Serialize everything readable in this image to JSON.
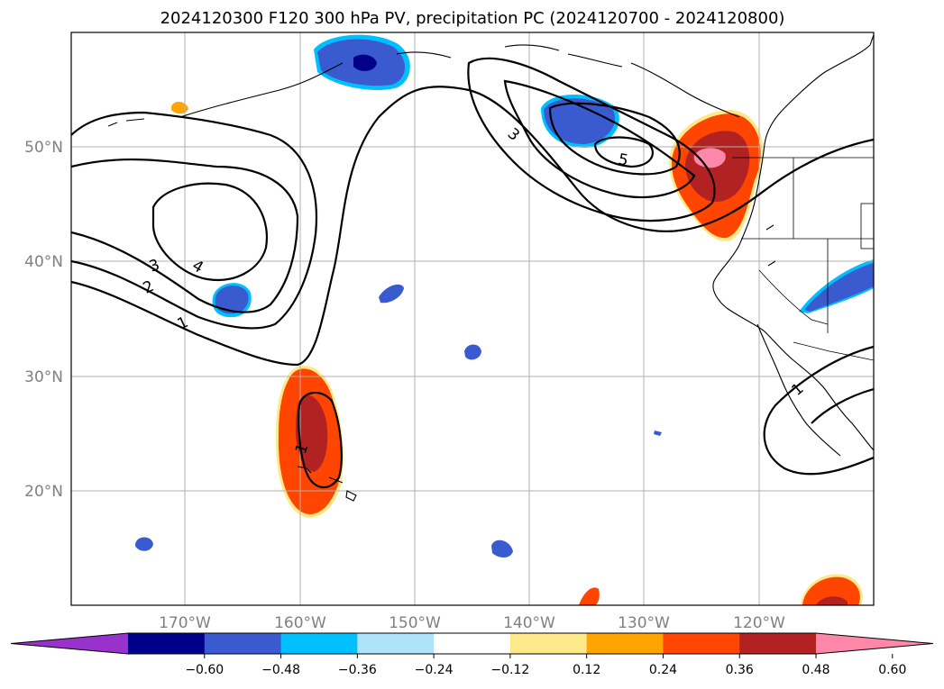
{
  "title": "2024120300 F120 300 hPa PV, precipitation PC (2024120700 - 2024120800)",
  "map": {
    "lat_labels": [
      "50°N",
      "40°N",
      "30°N",
      "20°N"
    ],
    "lon_labels": [
      "170°W",
      "160°W",
      "150°W",
      "140°W",
      "130°W",
      "120°W"
    ],
    "lon_range": [
      -180,
      -110
    ],
    "lat_range": [
      10,
      60
    ],
    "gridlines": true
  },
  "pv_contour_labels": [
    "1",
    "2",
    "3",
    "4",
    "3",
    "5",
    "1",
    "1"
  ],
  "colorbar": {
    "tick_labels": [
      "−0.60",
      "−0.48",
      "−0.36",
      "−0.24",
      "−0.12",
      "0.12",
      "0.24",
      "0.36",
      "0.48",
      "0.60"
    ],
    "colors": [
      "#9932cc",
      "#00008b",
      "#3a5bd0",
      "#00bfff",
      "#aee3f9",
      "#ffffff",
      "#fde98a",
      "#ffa500",
      "#ff4500",
      "#b22222",
      "#ff88aa"
    ],
    "extend": "both"
  }
}
